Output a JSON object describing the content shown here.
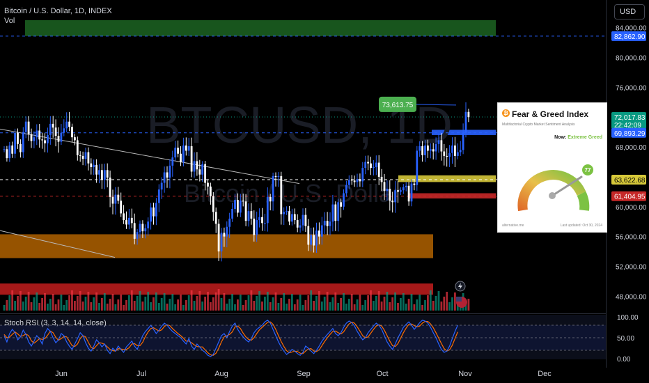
{
  "header": {
    "symbol_line": "Bitcoin / U.S. Dollar, 1D, INDEX",
    "vol_label": "Vol"
  },
  "currency_button": "USD",
  "watermark": {
    "main": "BTCUSD, 1D",
    "sub": "Bitcoin / U.S. Dollar"
  },
  "stoch_label": "Stoch RSI (3, 3, 14, 14, close)",
  "callout_price": "73,613.75",
  "price_tags": [
    {
      "text": "82,862.90",
      "price": 82862.9,
      "color": "#2962ff",
      "fg": "#ffffff"
    },
    {
      "text": "72,017.83",
      "price": 72017.83,
      "color": "#089981",
      "fg": "#ffffff",
      "second": "22:42:09"
    },
    {
      "text": "69,893.29",
      "price": 69893.29,
      "color": "#2962ff",
      "fg": "#ffffff"
    },
    {
      "text": "63,622.68",
      "price": 63622.68,
      "color": "#d6c83a",
      "fg": "#000000"
    },
    {
      "text": "61,404.95",
      "price": 61404.95,
      "color": "#c62828",
      "fg": "#ffffff"
    }
  ],
  "fear_greed": {
    "title": "Fear & Greed Index",
    "subtitle": "Multifactorial Crypto Market Sentiment Analysis",
    "now_label": "Now:",
    "now_value": "Extreme Greed",
    "score": "77",
    "footer_left": "alternative.me",
    "footer_right": "Last updated: Oct 30, 2024"
  },
  "colors": {
    "up": "#2962ff",
    "down": "#ffffff",
    "vol_up": "#089981",
    "vol_down": "#f23645",
    "k_line": "#2962ff",
    "d_line": "#ff6d00"
  },
  "chart_data": {
    "type": "candlestick",
    "price_axis": {
      "ticks": [
        84000,
        80000,
        76000,
        68000,
        60000,
        56000,
        52000,
        48000
      ],
      "tick_labels": [
        "84,000.00",
        "80,000.00",
        "76,000.00",
        "68,000.00",
        "60,000.00",
        "56,000.00",
        "52,000.00",
        "48,000.00"
      ],
      "ylim": [
        45700,
        87700
      ]
    },
    "time_axis": {
      "labels": [
        "Jun",
        "Jul",
        "Aug",
        "Sep",
        "Oct",
        "Nov",
        "Dec"
      ]
    },
    "stoch_axis": {
      "ticks": [
        100,
        50,
        0
      ],
      "tick_labels": [
        "100.00",
        "50.00",
        "0.00"
      ]
    },
    "zones": [
      {
        "low": 82863,
        "high": 85000,
        "color": "#1b5e20"
      },
      {
        "low": 53100,
        "high": 56300,
        "color": "#a65c00"
      },
      {
        "low": 48200,
        "high": 49700,
        "color": "#b71c1c"
      },
      {
        "low": 63300,
        "high": 64200,
        "color": "#d6c83a"
      },
      {
        "low": 61100,
        "high": 61800,
        "color": "#c62828"
      },
      {
        "low": 69600,
        "high": 70300,
        "color": "#2962ff"
      }
    ],
    "close": [
      67700,
      66500,
      68200,
      67100,
      69900,
      68400,
      67300,
      70000,
      71400,
      69700,
      68800,
      69300,
      70200,
      69000,
      68900,
      68500,
      69600,
      71100,
      70600,
      69500,
      68700,
      69900,
      70500,
      71400,
      70700,
      69300,
      68900,
      66900,
      66800,
      66400,
      67300,
      65800,
      65300,
      65600,
      64300,
      64900,
      63600,
      64900,
      63900,
      61300,
      60400,
      61600,
      60800,
      59100,
      58200,
      57600,
      58500,
      57800,
      55700,
      56600,
      57700,
      56700,
      57100,
      58000,
      59900,
      58700,
      60500,
      62300,
      63200,
      64600,
      63900,
      65500,
      66600,
      67900,
      67100,
      66000,
      68200,
      67500,
      68100,
      64700,
      66100,
      65000,
      64300,
      65700,
      63200,
      62700,
      61400,
      59300,
      57700,
      54000,
      56500,
      56000,
      57300,
      58400,
      59700,
      60900,
      59200,
      60800,
      60700,
      58100,
      59400,
      58400,
      56200,
      58200,
      58600,
      57800,
      57800,
      61300,
      60700,
      64100,
      64000,
      64100,
      59000,
      59300,
      59400,
      58000,
      59000,
      58200,
      57200,
      57500,
      58900,
      57400,
      54900,
      56200,
      54800,
      56800,
      56000,
      57500,
      58100,
      57400,
      58000,
      60300,
      58100,
      60600,
      60000,
      61800,
      62900,
      63600,
      63500,
      63300,
      63700,
      63400,
      65200,
      66000,
      65800,
      65200,
      65300,
      65900,
      64000,
      63300,
      62100,
      62400,
      60800,
      60600,
      62200,
      62000,
      62200,
      62600,
      62800,
      60700,
      63100,
      62900,
      67500,
      68100,
      66900,
      68200,
      67500,
      67700,
      67400,
      68400,
      68900,
      67400,
      66800,
      66700,
      67200,
      68200,
      66800,
      67300,
      67600,
      69900,
      72700,
      72000
    ],
    "stoch_k": [
      55,
      40,
      60,
      70,
      62,
      45,
      52,
      68,
      58,
      40,
      30,
      42,
      55,
      48,
      35,
      60,
      72,
      65,
      50,
      38,
      45,
      60,
      55,
      40,
      30,
      22,
      35,
      48,
      62,
      55,
      38,
      25,
      18,
      30,
      45,
      38,
      28,
      35,
      20,
      12,
      25,
      18,
      30,
      22,
      15,
      28,
      35,
      42,
      30,
      22,
      40,
      55,
      65,
      72,
      80,
      70,
      60,
      68,
      78,
      85,
      80,
      72,
      65,
      60,
      55,
      50,
      42,
      35,
      48,
      30,
      22,
      35,
      28,
      20,
      15,
      8,
      5,
      10,
      25,
      40,
      55,
      60,
      50,
      65,
      78,
      85,
      70,
      60,
      52,
      45,
      40,
      48,
      62,
      70,
      75,
      80,
      88,
      92,
      85,
      70,
      55,
      40,
      28,
      18,
      10,
      15,
      22,
      18,
      12,
      8,
      15,
      30,
      25,
      18,
      12,
      20,
      30,
      42,
      50,
      58,
      65,
      72,
      60,
      55,
      62,
      75,
      85,
      90,
      86,
      78,
      65,
      55,
      45,
      50,
      62,
      70,
      78,
      85,
      80,
      70,
      55,
      40,
      30,
      22,
      35,
      50,
      62,
      75,
      82,
      88,
      80,
      70,
      78,
      86,
      92,
      90,
      85,
      75,
      62,
      50,
      35,
      22,
      15,
      18,
      30,
      48,
      65,
      80
    ],
    "stoch_d": [
      58,
      50,
      52,
      58,
      64,
      59,
      53,
      55,
      59,
      55,
      43,
      37,
      42,
      48,
      46,
      48,
      56,
      66,
      62,
      51,
      44,
      48,
      53,
      52,
      42,
      31,
      29,
      35,
      48,
      55,
      52,
      39,
      27,
      24,
      31,
      38,
      37,
      34,
      28,
      22,
      19,
      18,
      24,
      23,
      22,
      22,
      26,
      35,
      36,
      31,
      31,
      39,
      53,
      64,
      72,
      74,
      70,
      66,
      69,
      77,
      81,
      79,
      72,
      66,
      60,
      55,
      49,
      42,
      42,
      38,
      33,
      29,
      28,
      28,
      21,
      14,
      9,
      8,
      13,
      25,
      40,
      52,
      55,
      58,
      64,
      76,
      78,
      72,
      61,
      52,
      46,
      44,
      50,
      60,
      69,
      75,
      81,
      87,
      88,
      82,
      70,
      55,
      41,
      29,
      19,
      14,
      16,
      18,
      17,
      13,
      12,
      18,
      23,
      24,
      18,
      17,
      21,
      31,
      41,
      50,
      58,
      65,
      66,
      62,
      59,
      64,
      74,
      83,
      87,
      85,
      76,
      66,
      55,
      50,
      52,
      61,
      70,
      78,
      81,
      78,
      68,
      55,
      42,
      31,
      29,
      36,
      49,
      62,
      73,
      82,
      83,
      79,
      76,
      78,
      85,
      89,
      89,
      83,
      74,
      62,
      49,
      36,
      24,
      18,
      21,
      32,
      48,
      64
    ]
  }
}
